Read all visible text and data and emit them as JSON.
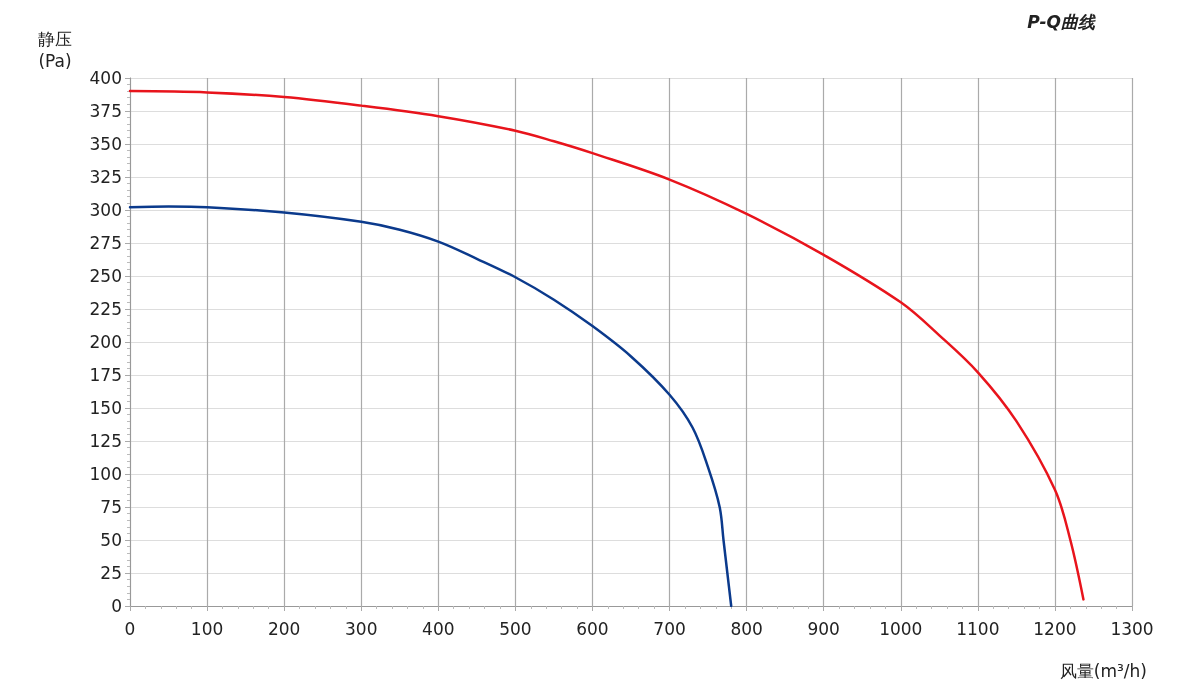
{
  "chart_data": {
    "type": "line",
    "title": "P-Q曲线",
    "xlabel": "风量(m³/h)",
    "ylabel": "静压(Pa)",
    "xlim": [
      0,
      1300
    ],
    "xticks": [
      0,
      100,
      200,
      300,
      400,
      500,
      600,
      700,
      800,
      900,
      1000,
      1100,
      1200,
      1300
    ],
    "ylim": [
      0,
      400
    ],
    "yticks": [
      0,
      25,
      50,
      75,
      100,
      125,
      150,
      175,
      200,
      225,
      250,
      275,
      300,
      325,
      350,
      375,
      400
    ],
    "grid": true,
    "marker": "none",
    "line_style": "solid",
    "series": [
      {
        "color": "#0b3a8c",
        "x": [
          0,
          50,
          100,
          200,
          300,
          350,
          400,
          450,
          500,
          550,
          600,
          650,
          700,
          730,
          750,
          765,
          770,
          775,
          780
        ],
        "values": [
          302,
          302.5,
          302,
          298,
          291,
          285,
          276,
          263,
          249,
          232,
          212,
          189,
          160,
          135,
          105,
          75,
          50,
          25,
          0
        ]
      },
      {
        "color": "#e8141c",
        "x": [
          0,
          100,
          200,
          300,
          400,
          500,
          550,
          600,
          700,
          800,
          900,
          1000,
          1050,
          1100,
          1150,
          1200,
          1220,
          1237
        ],
        "values": [
          390,
          389,
          385.5,
          379,
          371,
          360,
          352,
          343,
          323,
          297,
          266,
          230,
          205,
          177,
          140,
          88,
          50,
          5
        ]
      }
    ]
  }
}
